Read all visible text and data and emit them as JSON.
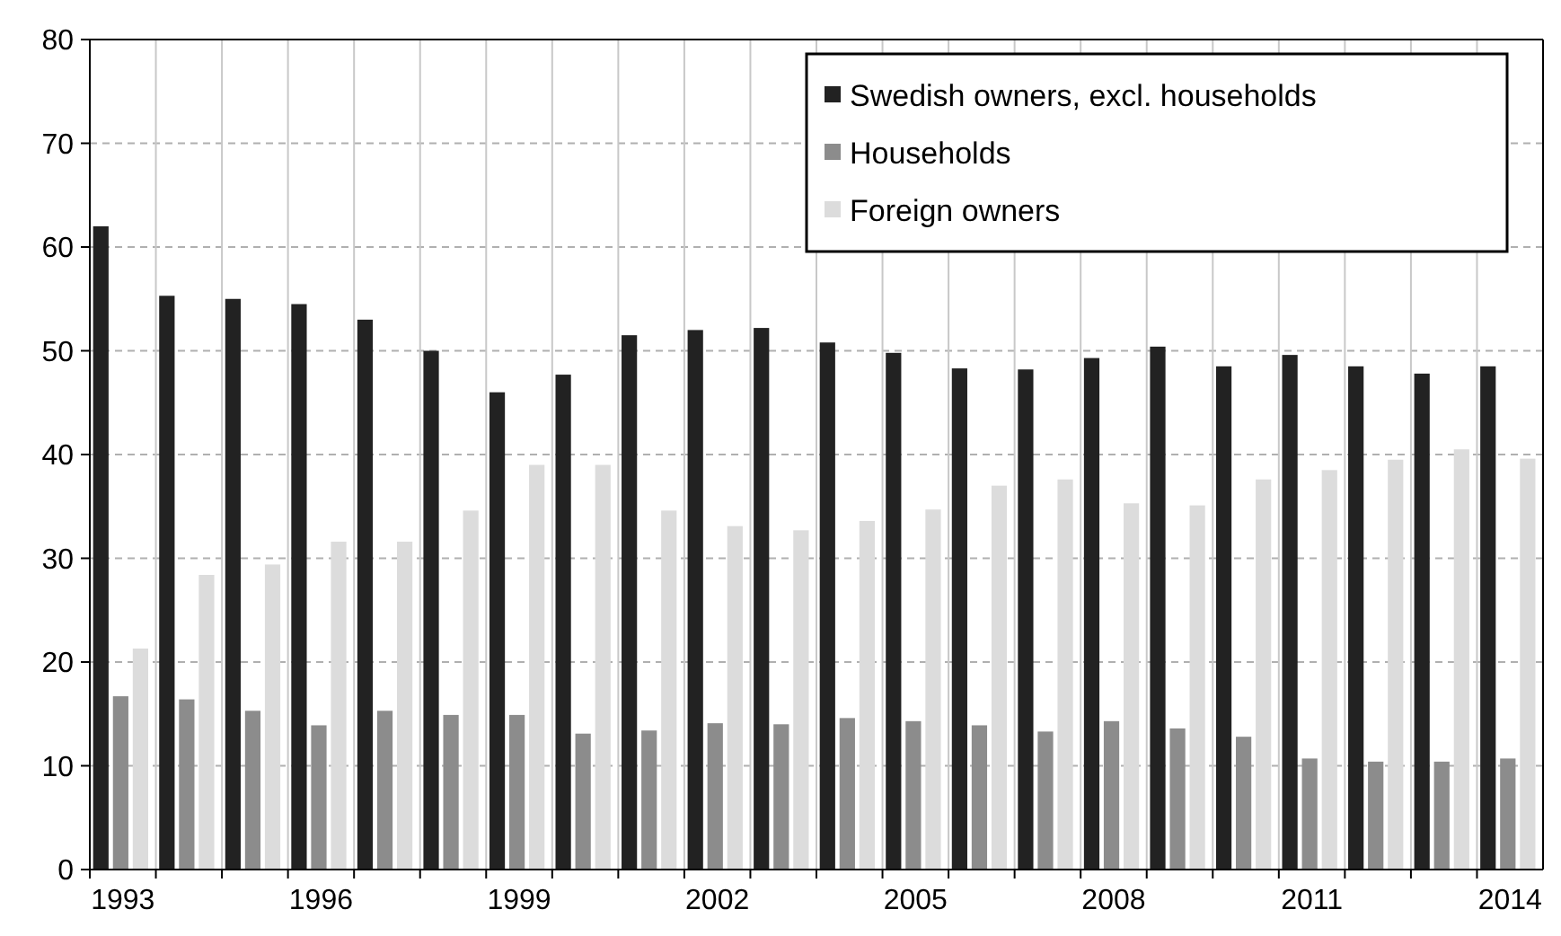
{
  "chart_data": {
    "type": "bar",
    "categories": [
      "1993",
      null,
      null,
      "1996",
      null,
      null,
      "1999",
      null,
      null,
      "2002",
      null,
      null,
      "2005",
      null,
      null,
      "2008",
      null,
      null,
      "2011",
      null,
      null,
      "2014"
    ],
    "series": [
      {
        "name": "Swedish owners, excl. households",
        "color": "#222222",
        "values": [
          62,
          55.3,
          55,
          54.5,
          53,
          50,
          46,
          47.7,
          51.5,
          52,
          52.2,
          50.8,
          49.8,
          48.3,
          48.2,
          49.3,
          50.4,
          48.5,
          49.6,
          48.5,
          47.8,
          48.5
        ]
      },
      {
        "name": "Households",
        "color": "#8c8c8c",
        "values": [
          16.7,
          16.4,
          15.3,
          13.9,
          15.3,
          14.9,
          14.9,
          13.1,
          13.4,
          14.1,
          14,
          14.6,
          14.3,
          13.9,
          13.3,
          14.3,
          13.6,
          12.8,
          10.7,
          10.4,
          10.4,
          10.7
        ]
      },
      {
        "name": "Foreign owners",
        "color": "#dcdcdc",
        "values": [
          21.3,
          28.4,
          29.4,
          31.6,
          31.6,
          34.6,
          39,
          39,
          34.6,
          33.1,
          32.7,
          33.6,
          34.7,
          37,
          37.6,
          35.3,
          35.1,
          37.6,
          38.5,
          39.5,
          40.5,
          39.6
        ]
      }
    ],
    "ylim": [
      0,
      80
    ],
    "yticks": [
      0,
      10,
      20,
      30,
      40,
      50,
      60,
      70,
      80
    ],
    "grid": true,
    "legend": "top right"
  }
}
